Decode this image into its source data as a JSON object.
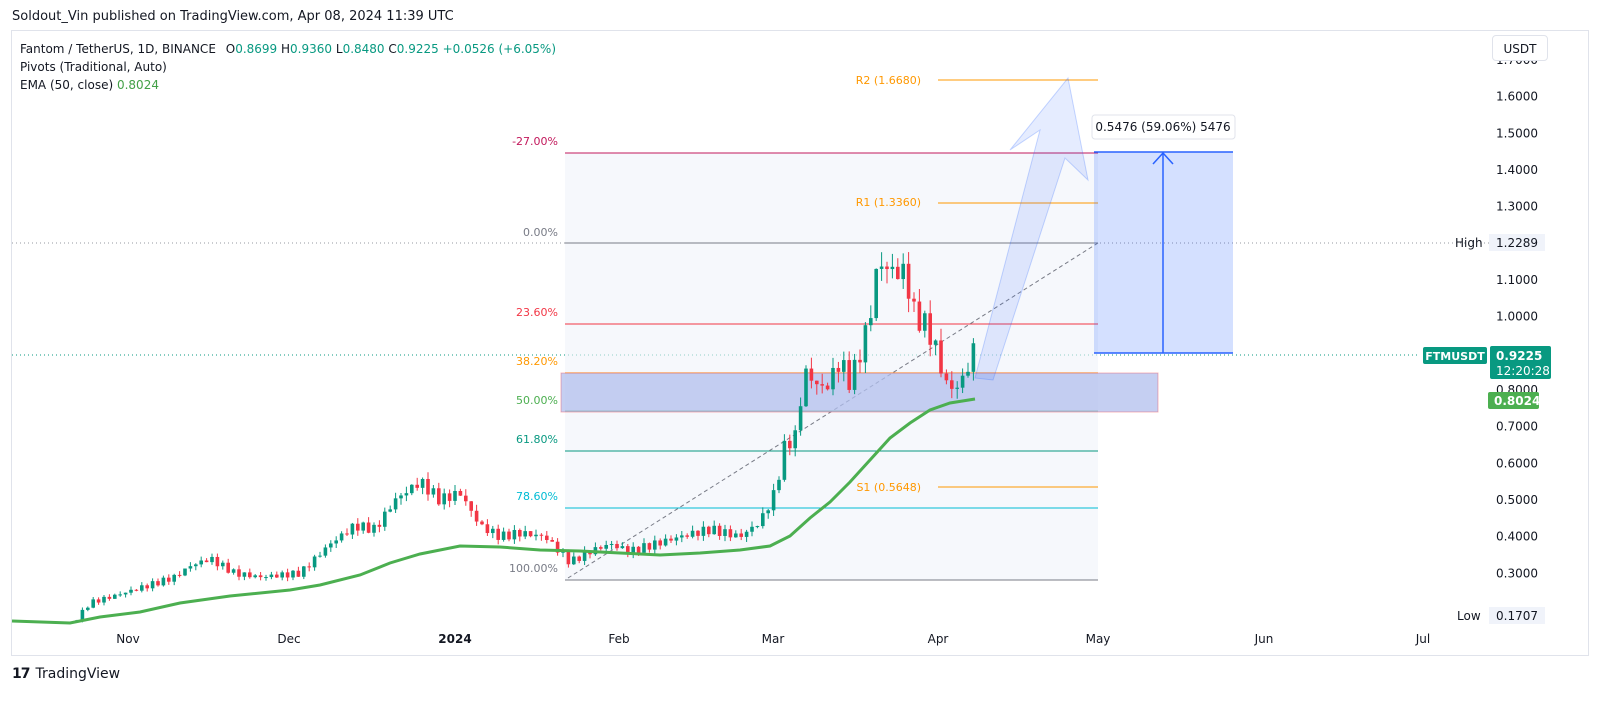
{
  "header": {
    "publisher_line": "Soldout_Vin published on TradingView.com, Apr 08, 2024 11:39 UTC"
  },
  "legend": {
    "symbol": "Fantom / TetherUS, 1D, BINANCE",
    "o_label": "O",
    "o_value": "0.8699",
    "h_label": "H",
    "h_value": "0.9360",
    "l_label": "L",
    "l_value": "0.8480",
    "c_label": "C",
    "c_value": "0.9225",
    "change": "+0.0526 (+6.05%)",
    "pivots": "Pivots (Traditional, Auto)",
    "ema_label": "EMA (50, close)",
    "ema_value": "0.8024"
  },
  "currency_button": "USDT",
  "footer": {
    "brand": "TradingView",
    "logo": "17"
  },
  "price_axis": {
    "ticks": [
      "1.7000",
      "1.6000",
      "1.5000",
      "1.4000",
      "1.3000",
      "1.2000",
      "1.1000",
      "1.0000",
      "0.9000",
      "0.8000",
      "0.7000",
      "0.6000",
      "0.5000",
      "0.4000",
      "0.3000"
    ],
    "high_label": "High",
    "high_value": "1.2289",
    "low_label": "Low",
    "low_value": "0.1707",
    "symbol_tag": "FTMUSDT",
    "last_price": "0.9225",
    "countdown": "12:20:28",
    "ema_tag": "0.8024"
  },
  "time_axis": {
    "labels": [
      "Nov",
      "Dec",
      "2024",
      "Feb",
      "Mar",
      "Apr",
      "May",
      "Jun",
      "Jul"
    ]
  },
  "fibonacci": [
    {
      "label": "-27.00%",
      "color": "#c2185b"
    },
    {
      "label": "0.00%",
      "color": "#787b86"
    },
    {
      "label": "23.60%",
      "color": "#f23645"
    },
    {
      "label": "38.20%",
      "color": "#ff9800"
    },
    {
      "label": "50.00%",
      "color": "#4caf50"
    },
    {
      "label": "61.80%",
      "color": "#089981"
    },
    {
      "label": "78.60%",
      "color": "#00bcd4"
    },
    {
      "label": "100.00%",
      "color": "#787b86"
    }
  ],
  "pivots": [
    {
      "label": "R2 (1.6680)"
    },
    {
      "label": "R1 (1.3360)"
    },
    {
      "label": "S1 (0.5648)"
    }
  ],
  "measure_box": {
    "label": "0.5476 (59.06%) 5476"
  },
  "colors": {
    "up": "#089981",
    "down": "#f23645",
    "ema": "#4caf50",
    "pivot": "#ff9800",
    "zone": "#b2bfee",
    "projection": "#2962ff"
  }
}
